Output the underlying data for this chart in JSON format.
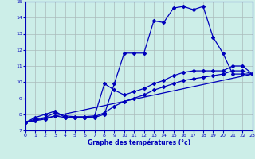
{
  "xlabel": "Graphe des températures (°c)",
  "bg_color": "#cceee8",
  "line_color": "#0000bb",
  "grid_color": "#aabbbb",
  "line1_x": [
    0,
    1,
    2,
    3,
    4,
    5,
    6,
    7,
    8,
    9,
    10,
    11,
    12,
    13,
    14,
    15,
    16,
    17,
    18,
    19,
    20,
    21,
    22,
    23
  ],
  "line1_y": [
    7.5,
    7.8,
    8.0,
    8.2,
    7.8,
    7.8,
    7.8,
    7.8,
    8.0,
    9.9,
    11.8,
    11.8,
    11.8,
    13.8,
    13.7,
    14.6,
    14.7,
    14.5,
    14.7,
    12.8,
    11.8,
    10.5,
    10.5,
    10.5
  ],
  "line2_x": [
    0,
    23
  ],
  "line2_y": [
    7.5,
    10.5
  ],
  "line3_x": [
    0,
    1,
    2,
    3,
    4,
    5,
    6,
    7,
    8,
    9,
    10,
    11,
    12,
    13,
    14,
    15,
    16,
    17,
    18,
    19,
    20,
    21,
    22,
    23
  ],
  "line3_y": [
    7.5,
    7.7,
    7.8,
    8.1,
    7.9,
    7.85,
    7.85,
    7.9,
    9.9,
    9.5,
    9.2,
    9.4,
    9.6,
    9.9,
    10.1,
    10.4,
    10.6,
    10.7,
    10.7,
    10.7,
    10.7,
    11.0,
    11.0,
    10.5
  ],
  "line4_x": [
    0,
    1,
    2,
    3,
    4,
    5,
    6,
    7,
    8,
    9,
    10,
    11,
    12,
    13,
    14,
    15,
    16,
    17,
    18,
    19,
    20,
    21,
    22,
    23
  ],
  "line4_y": [
    7.5,
    7.6,
    7.7,
    7.9,
    7.8,
    7.8,
    7.8,
    7.85,
    8.1,
    8.5,
    8.8,
    9.0,
    9.2,
    9.5,
    9.7,
    9.9,
    10.1,
    10.2,
    10.3,
    10.4,
    10.5,
    10.7,
    10.7,
    10.5
  ],
  "ylim": [
    7,
    15
  ],
  "xlim": [
    0,
    23
  ],
  "yticks": [
    7,
    8,
    9,
    10,
    11,
    12,
    13,
    14,
    15
  ],
  "xticks": [
    0,
    1,
    2,
    3,
    4,
    5,
    6,
    7,
    8,
    9,
    10,
    11,
    12,
    13,
    14,
    15,
    16,
    17,
    18,
    19,
    20,
    21,
    22,
    23
  ]
}
